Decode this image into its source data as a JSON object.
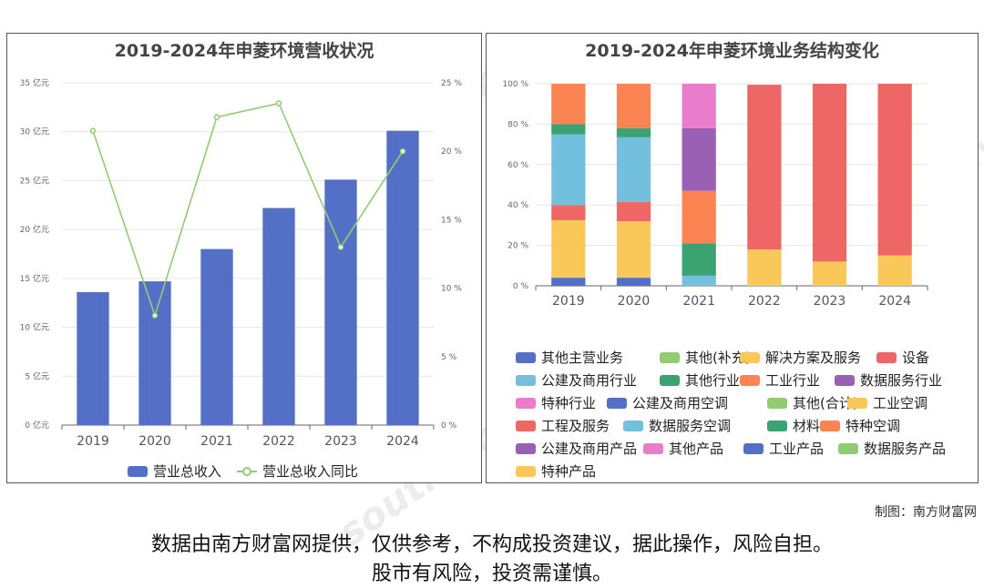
{
  "left": {
    "title": "2019-2024年申菱环境营收状况",
    "legend": [
      "营业总收入",
      "营业总收入同比"
    ]
  },
  "right": {
    "title": "2019-2024年申菱环境业务结构变化"
  },
  "watermark": [
    "南方财富网",
    "southmoney.com"
  ],
  "credit": "制图：南方财富网",
  "disclaimer": [
    "数据由南方财富网提供，仅供参考，不构成投资建议，据此操作，风险自担。",
    "股市有风险，投资需谨慎。"
  ],
  "chart_data": [
    {
      "type": "bar",
      "title": "2019-2024年申菱环境营收状况",
      "categories": [
        "2019",
        "2020",
        "2021",
        "2022",
        "2023",
        "2024"
      ],
      "y_ticks": [
        "0 亿元",
        "5 亿元",
        "10 亿元",
        "15 亿元",
        "20 亿元",
        "25 亿元",
        "30 亿元",
        "35 亿元"
      ],
      "y2_ticks": [
        "0 %",
        "5 %",
        "10 %",
        "15 %",
        "20 %",
        "25 %"
      ],
      "ylim": [
        0,
        35
      ],
      "y2lim": [
        0,
        25
      ],
      "series": [
        {
          "name": "营业总收入",
          "type": "bar",
          "axis": "left",
          "color": "#5470c6",
          "values": [
            13.6,
            14.7,
            18.0,
            22.2,
            25.1,
            30.1
          ]
        },
        {
          "name": "营业总收入同比",
          "type": "line",
          "axis": "right",
          "color": "#91cc75",
          "values": [
            21.5,
            8.0,
            22.5,
            23.5,
            13.0,
            20.0
          ]
        }
      ]
    },
    {
      "type": "bar",
      "stacked": true,
      "title": "2019-2024年申菱环境业务结构变化",
      "categories": [
        "2019",
        "2020",
        "2021",
        "2022",
        "2023",
        "2024"
      ],
      "y_ticks": [
        "0 %",
        "20 %",
        "40 %",
        "60 %",
        "80 %",
        "100 %"
      ],
      "ylim": [
        0,
        100
      ],
      "legend": [
        {
          "name": "其他主营业务",
          "color": "#5470c6"
        },
        {
          "name": "其他(补充)",
          "color": "#91cc75"
        },
        {
          "name": "解决方案及服务",
          "color": "#fac858"
        },
        {
          "name": "设备",
          "color": "#ee6666"
        },
        {
          "name": "公建及商用行业",
          "color": "#73c0de"
        },
        {
          "name": "其他行业",
          "color": "#3ba272"
        },
        {
          "name": "工业行业",
          "color": "#fc8452"
        },
        {
          "name": "数据服务行业",
          "color": "#9a60b4"
        },
        {
          "name": "特种行业",
          "color": "#ea7ccc"
        },
        {
          "name": "公建及商用空调",
          "color": "#5470c6"
        },
        {
          "name": "其他(合计)",
          "color": "#91cc75"
        },
        {
          "name": "工业空调",
          "color": "#fac858"
        },
        {
          "name": "工程及服务",
          "color": "#ee6666"
        },
        {
          "name": "数据服务空调",
          "color": "#73c0de"
        },
        {
          "name": "材料",
          "color": "#3ba272"
        },
        {
          "name": "特种空调",
          "color": "#fc8452"
        },
        {
          "name": "公建及商用产品",
          "color": "#9a60b4"
        },
        {
          "name": "其他产品",
          "color": "#ea7ccc"
        },
        {
          "name": "工业产品",
          "color": "#5470c6"
        },
        {
          "name": "数据服务产品",
          "color": "#91cc75"
        },
        {
          "name": "特种产品",
          "color": "#fac858"
        }
      ],
      "stacks": [
        [
          {
            "series": "其他主营业务",
            "color": "#5470c6",
            "value": 4
          },
          {
            "series": "解决方案及服务",
            "color": "#fac858",
            "value": 28.5
          },
          {
            "series": "设备",
            "color": "#ee6666",
            "value": 7.5
          },
          {
            "series": "公建及商用行业",
            "color": "#73c0de",
            "value": 35
          },
          {
            "series": "其他行业",
            "color": "#3ba272",
            "value": 5
          },
          {
            "series": "工业行业",
            "color": "#fc8452",
            "value": 20
          }
        ],
        [
          {
            "series": "其他主营业务",
            "color": "#5470c6",
            "value": 4
          },
          {
            "series": "解决方案及服务",
            "color": "#fac858",
            "value": 28
          },
          {
            "series": "设备",
            "color": "#ee6666",
            "value": 9.5
          },
          {
            "series": "公建及商用行业",
            "color": "#73c0de",
            "value": 32
          },
          {
            "series": "其他行业",
            "color": "#3ba272",
            "value": 4.5
          },
          {
            "series": "工业行业",
            "color": "#fc8452",
            "value": 22
          }
        ],
        [
          {
            "series": "数据服务空调",
            "color": "#73c0de",
            "value": 5
          },
          {
            "series": "材料",
            "color": "#3ba272",
            "value": 16
          },
          {
            "series": "特种空调",
            "color": "#fc8452",
            "value": 26
          },
          {
            "series": "公建及商用产品",
            "color": "#9a60b4",
            "value": 31
          },
          {
            "series": "其他产品",
            "color": "#ea7ccc",
            "value": 22
          }
        ],
        [
          {
            "series": "解决方案及服务",
            "color": "#fac858",
            "value": 18
          },
          {
            "series": "设备",
            "color": "#ee6666",
            "value": 81.5
          }
        ],
        [
          {
            "series": "解决方案及服务",
            "color": "#fac858",
            "value": 12
          },
          {
            "series": "设备",
            "color": "#ee6666",
            "value": 88
          }
        ],
        [
          {
            "series": "解决方案及服务",
            "color": "#fac858",
            "value": 15
          },
          {
            "series": "设备",
            "color": "#ee6666",
            "value": 85
          }
        ]
      ]
    }
  ]
}
